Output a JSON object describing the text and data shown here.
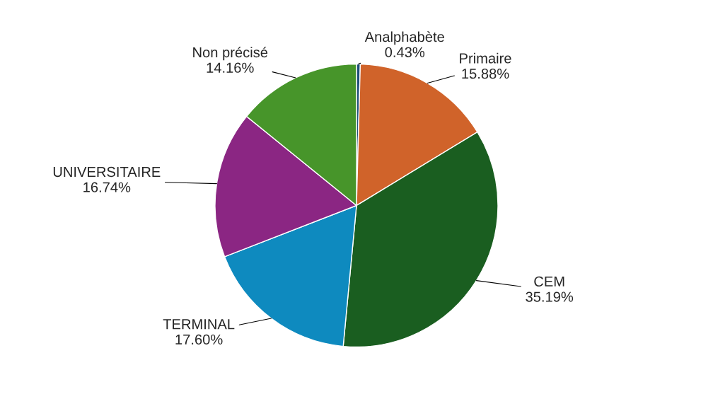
{
  "chart_data": {
    "type": "pie",
    "categories": [
      "Analphabète",
      "Primaire",
      "CEM",
      "TERMINAL",
      "UNIVERSITAIRE",
      "Non précisé"
    ],
    "values": [
      0.43,
      15.88,
      35.19,
      17.6,
      16.74,
      14.16
    ],
    "value_labels": [
      "0.43%",
      "15.88%",
      "35.19%",
      "17.60%",
      "16.74%",
      "14.16%"
    ],
    "colors": [
      "#1f4e79",
      "#d0632a",
      "#1a5e20",
      "#0e8abf",
      "#8b2683",
      "#47952a"
    ],
    "legend": false
  }
}
